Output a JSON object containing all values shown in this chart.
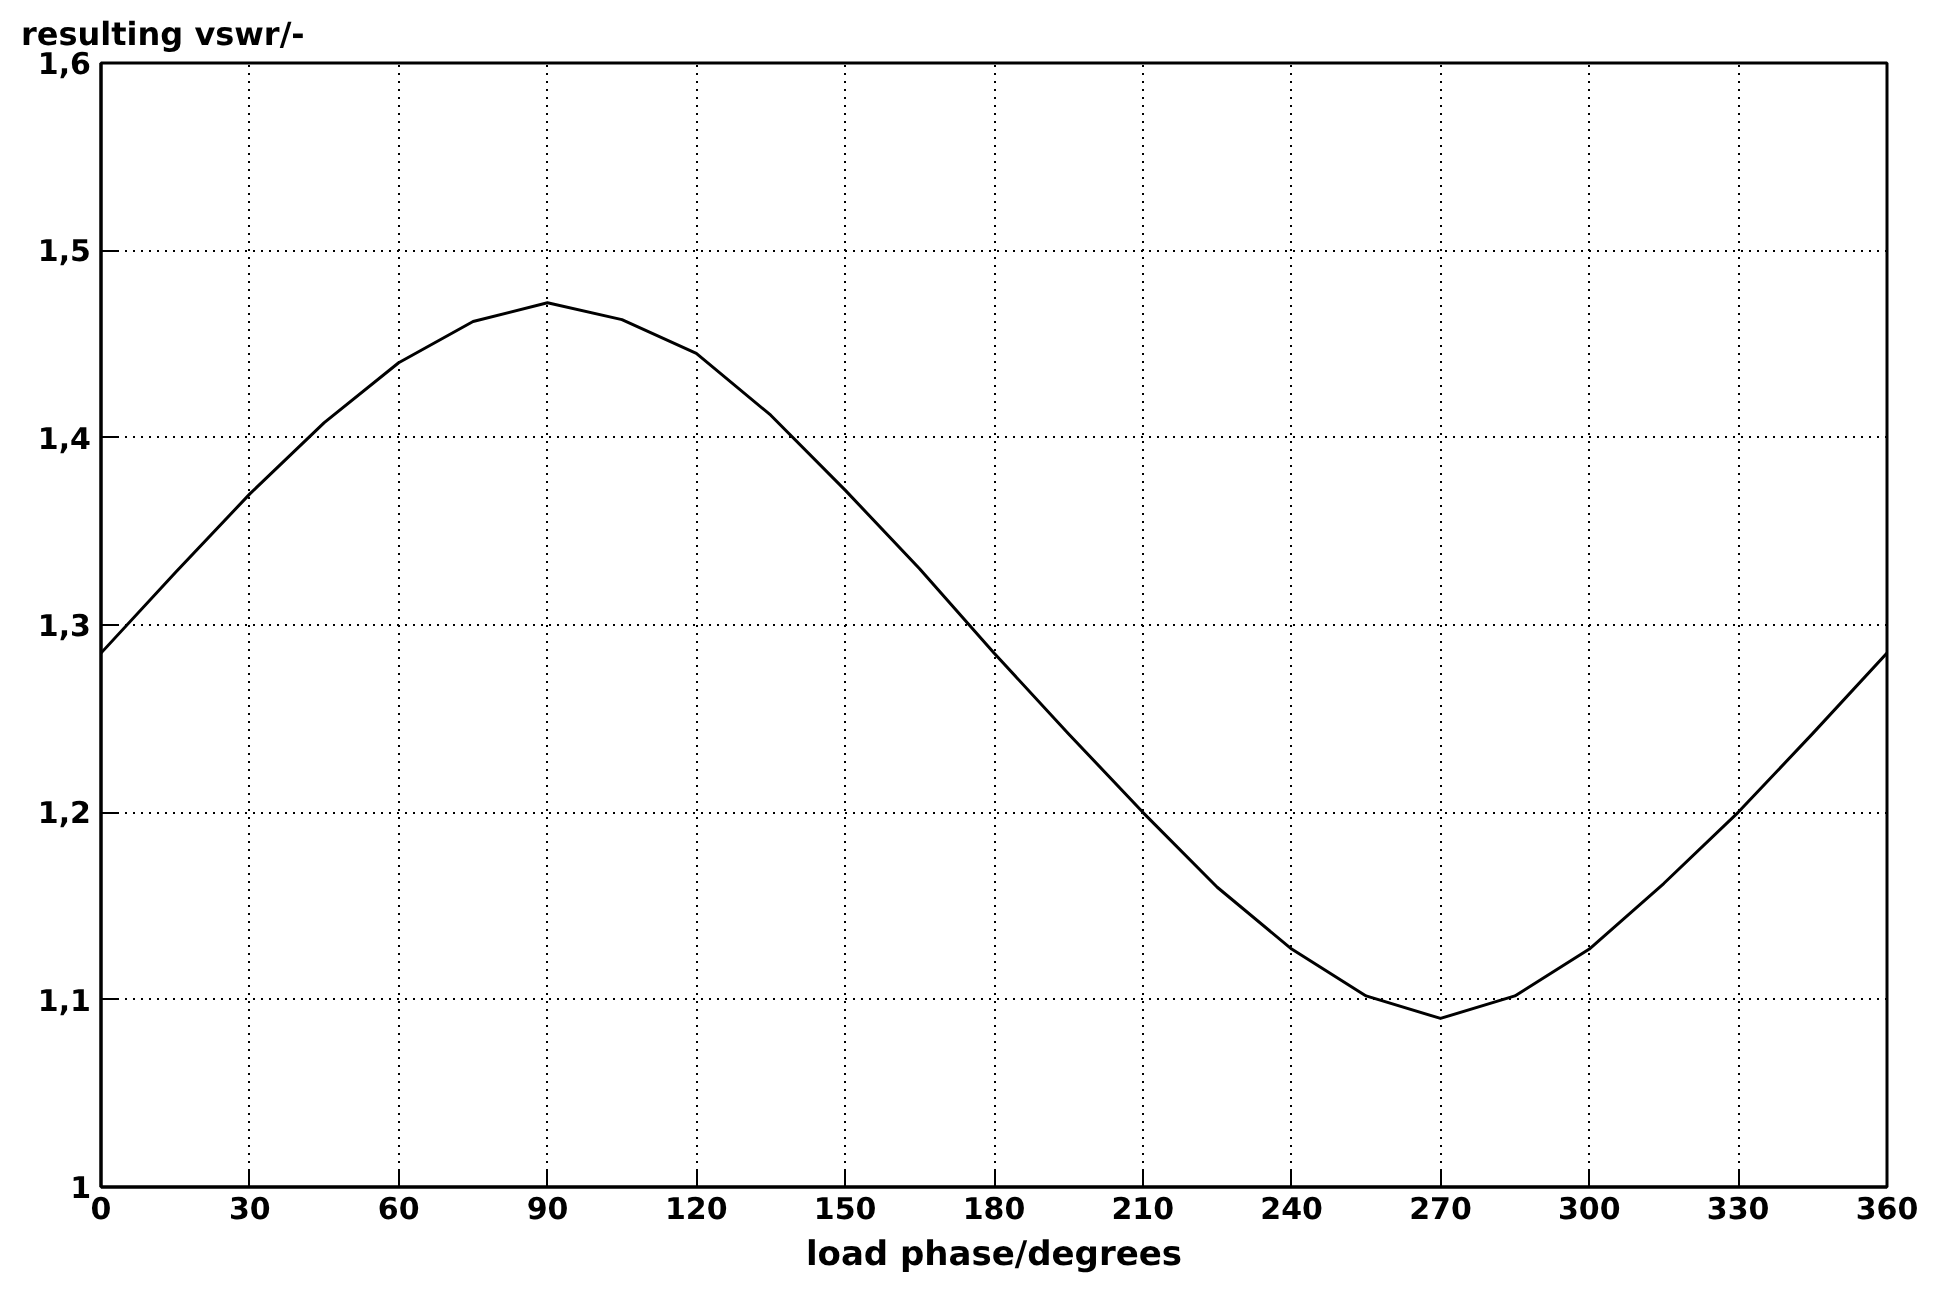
{
  "chart_data": {
    "type": "line",
    "ylabel": "resulting vswr/-",
    "xlabel": "load phase/degrees",
    "x": [
      0,
      15,
      30,
      45,
      60,
      75,
      90,
      105,
      120,
      135,
      150,
      165,
      180,
      195,
      210,
      225,
      240,
      255,
      270,
      285,
      300,
      315,
      330,
      345,
      360
    ],
    "series": [
      {
        "color": "#000000",
        "values": [
          1.285,
          1.328,
          1.37,
          1.408,
          1.44,
          1.462,
          1.472,
          1.463,
          1.445,
          1.412,
          1.372,
          1.33,
          1.285,
          1.242,
          1.2,
          1.16,
          1.127,
          1.102,
          1.09,
          1.102,
          1.127,
          1.162,
          1.2,
          1.242,
          1.285
        ]
      }
    ],
    "xlim": [
      0,
      360
    ],
    "xticks": [
      0,
      30,
      60,
      90,
      120,
      150,
      180,
      210,
      240,
      270,
      300,
      330,
      360
    ],
    "ylim": [
      1,
      1.6
    ],
    "yticks": [
      {
        "value": 1,
        "label": "1"
      },
      {
        "value": 1.1,
        "label": "1,1"
      },
      {
        "value": 1.2,
        "label": "1,2"
      },
      {
        "value": 1.3,
        "label": "1,3"
      },
      {
        "value": 1.4,
        "label": "1,4"
      },
      {
        "value": 1.5,
        "label": "1,5"
      },
      {
        "value": 1.6,
        "label": "1,6"
      }
    ],
    "grid": true,
    "marker": "none",
    "line_style": "solid"
  }
}
